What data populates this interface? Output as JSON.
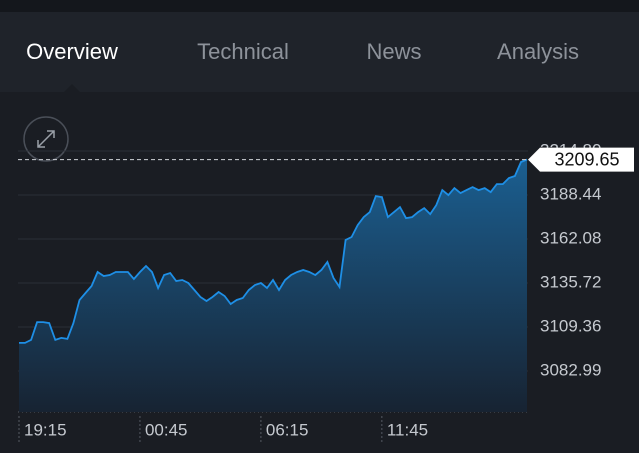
{
  "tabs": [
    "Overview",
    "Technical",
    "News",
    "Analysis"
  ],
  "chart_data": {
    "type": "line",
    "categories": [
      "19:15",
      null,
      null,
      null,
      null,
      null,
      null,
      null,
      null,
      null,
      null,
      null,
      null,
      null,
      null,
      null,
      null,
      null,
      null,
      null,
      "00:45",
      null,
      null,
      null,
      null,
      null,
      null,
      null,
      null,
      null,
      null,
      null,
      null,
      null,
      null,
      null,
      null,
      null,
      null,
      null,
      "06:15",
      null,
      null,
      null,
      null,
      null,
      null,
      null,
      null,
      null,
      null,
      null,
      null,
      null,
      null,
      null,
      null,
      null,
      null,
      null,
      "11:45",
      null,
      null,
      null,
      null,
      null,
      null,
      null,
      null,
      null,
      null,
      null,
      null,
      null,
      null,
      null,
      null,
      null,
      null,
      null,
      null,
      null,
      null,
      null,
      null
    ],
    "series": [
      {
        "color": "#1e8fe6",
        "values": [
          3099.8,
          3099.8,
          3101.6,
          3112.3,
          3112.3,
          3111.7,
          3101.6,
          3102.8,
          3102.2,
          3111.7,
          3125.5,
          3129.7,
          3133.9,
          3142.3,
          3139.9,
          3140.5,
          3142.3,
          3142.3,
          3142.3,
          3138.1,
          3142.3,
          3145.9,
          3142.3,
          3132.7,
          3140.5,
          3141.7,
          3136.9,
          3137.5,
          3135.7,
          3131.5,
          3127.3,
          3124.9,
          3127.3,
          3130.3,
          3127.9,
          3123.1,
          3125.5,
          3126.7,
          3131.5,
          3134.5,
          3135.7,
          3132.7,
          3137.5,
          3131.5,
          3137.5,
          3140.5,
          3142.3,
          3143.5,
          3142.3,
          3140.5,
          3143.5,
          3148.3,
          3138.7,
          3133.3,
          3161.5,
          3163.3,
          3170.4,
          3175.2,
          3178.2,
          3187.8,
          3187.2,
          3175.2,
          3178.2,
          3181.2,
          3174.6,
          3175.2,
          3178.2,
          3180.6,
          3177.0,
          3182.4,
          3191.4,
          3188.4,
          3192.6,
          3189.6,
          3191.4,
          3193.2,
          3191.4,
          3192.6,
          3190.2,
          3195.0,
          3195.0,
          3198.6,
          3199.8,
          3208.2,
          3209.65
        ]
      }
    ],
    "ylim": [
      3058.4,
      3221.4
    ],
    "yticks": [
      3082.99,
      3109.36,
      3135.72,
      3162.08,
      3188.44,
      {
        "value": 3214.8,
        "label": "3214.80"
      }
    ],
    "grid": true
  }
}
